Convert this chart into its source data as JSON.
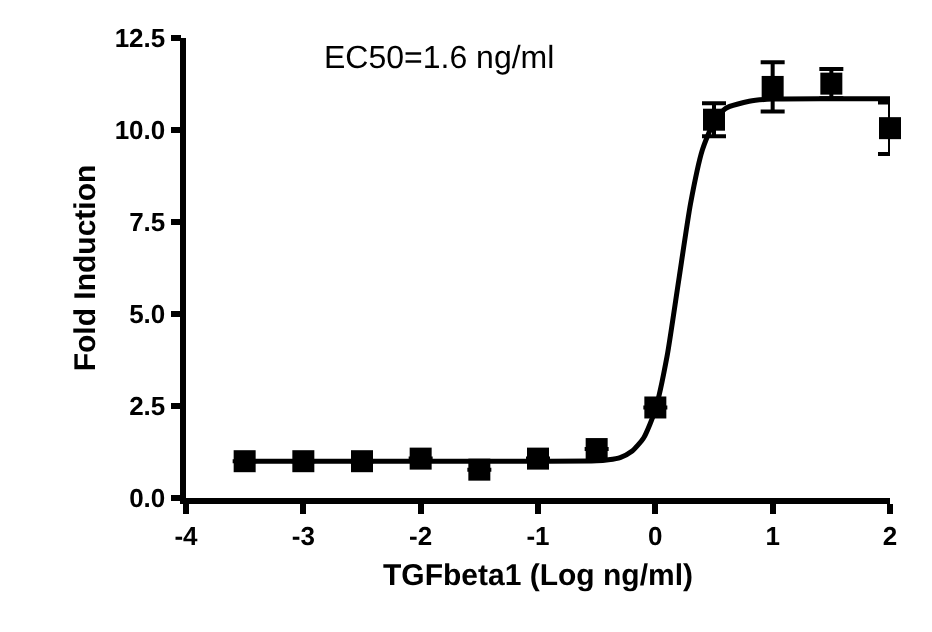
{
  "chart_data": {
    "type": "scatter",
    "xlabel": "TGFbeta1 (Log ng/ml)",
    "ylabel": "Fold Induction",
    "annotations": [
      "EC50=1.6 ng/ml"
    ],
    "xlim": [
      -4,
      2
    ],
    "xticks": [
      -4,
      -3,
      -2,
      -1,
      0,
      1,
      2
    ],
    "ylim": [
      0,
      12.5
    ],
    "yticks": [
      {
        "value": 0,
        "label": "0.0"
      },
      {
        "value": 2.5,
        "label": "2.5"
      },
      {
        "value": 5,
        "label": "5.0"
      },
      {
        "value": 7.5,
        "label": "7.5"
      },
      {
        "value": 10,
        "label": "10.0"
      },
      {
        "value": 12.5,
        "label": "12.5"
      }
    ],
    "series": [
      {
        "marker": "square",
        "color": "#000000",
        "x": [
          -3.5,
          -3,
          -2.5,
          -2,
          -1.5,
          -1,
          -0.5,
          0,
          0.5,
          1,
          1.5,
          2
        ],
        "values": [
          1.0,
          1.0,
          1.0,
          1.07,
          0.77,
          1.07,
          1.33,
          2.46,
          10.28,
          11.17,
          11.26,
          10.05
        ],
        "errors": [
          null,
          null,
          null,
          null,
          null,
          null,
          null,
          null,
          0.45,
          0.67,
          0.4,
          0.7
        ]
      },
      {
        "type": "line",
        "marker": "none",
        "line_style": "solid",
        "color": "#000000",
        "x": [
          -3.5,
          -2,
          -1,
          -0.5,
          -0.4,
          -0.3,
          -0.2,
          -0.1,
          0,
          0.1,
          0.2,
          0.3,
          0.4,
          0.5,
          0.6,
          0.8,
          1,
          1.5,
          2
        ],
        "values": [
          1.0,
          1.0,
          1.0,
          1.01,
          1.04,
          1.1,
          1.27,
          1.63,
          2.4,
          3.85,
          5.93,
          8.0,
          9.45,
          10.22,
          10.59,
          10.78,
          10.84,
          10.85,
          10.85
        ]
      }
    ]
  }
}
